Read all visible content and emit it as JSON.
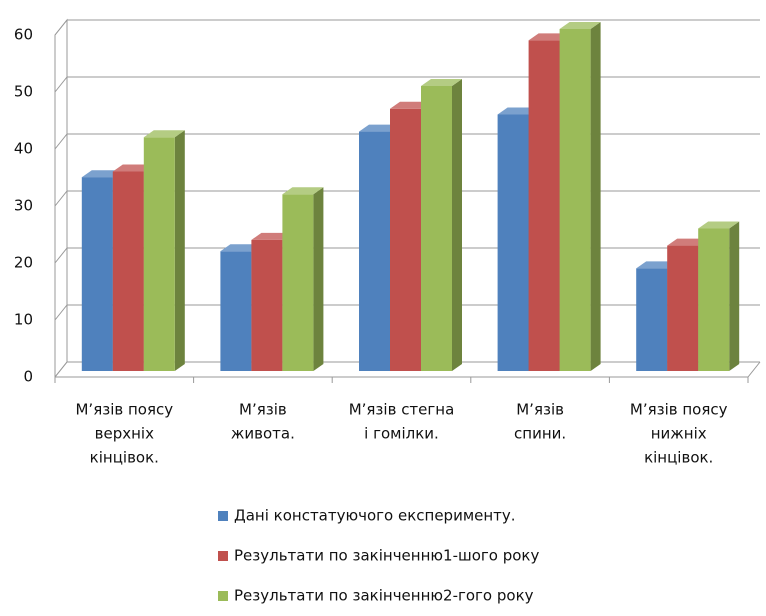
{
  "chart_data": {
    "type": "bar3d",
    "categories": [
      [
        "М’язів поясу",
        "верхніх",
        "кінцівок."
      ],
      [
        "М’язів",
        "живота."
      ],
      [
        "М’язів стегна",
        "і гомілки."
      ],
      [
        "М’язів",
        "спини."
      ],
      [
        "М’язів поясу",
        "нижніх",
        "кінцівок."
      ]
    ],
    "series": [
      {
        "name": "Дані констатуючого експерименту.",
        "color": "#4f81bd",
        "values": [
          34,
          21,
          42,
          45,
          18
        ]
      },
      {
        "name": "Результати по закінченню1-шого року",
        "color": "#c0504d",
        "values": [
          35,
          23,
          46,
          58,
          22
        ]
      },
      {
        "name": "Результати по закінченню2-гого року",
        "color": "#9bbb59",
        "values": [
          41,
          31,
          50,
          60,
          25
        ]
      }
    ],
    "ylim": [
      0,
      60
    ],
    "yticks": [
      0,
      10,
      20,
      30,
      40,
      50,
      60
    ],
    "grid": true,
    "legend": "bottom"
  }
}
